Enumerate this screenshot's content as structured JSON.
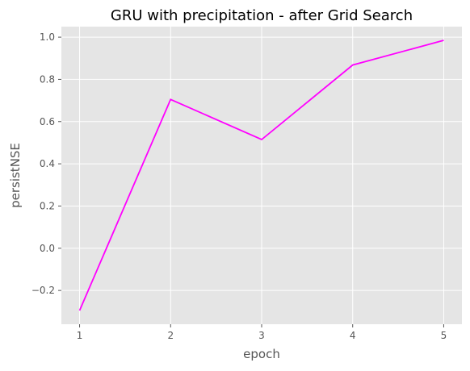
{
  "chart_data": {
    "type": "line",
    "title": "GRU with precipitation - after Grid Search",
    "xlabel": "epoch",
    "ylabel": "persistNSE",
    "x": [
      1,
      2,
      3,
      4,
      5
    ],
    "series": [
      {
        "values": [
          -0.295,
          0.705,
          0.515,
          0.868,
          0.985
        ],
        "color": "#ff00ff"
      }
    ],
    "xlim": [
      0.8,
      5.2
    ],
    "ylim": [
      -0.36,
      1.05
    ],
    "xticks": [
      1,
      2,
      3,
      4,
      5
    ],
    "xtick_labels": [
      "1",
      "2",
      "3",
      "4",
      "5"
    ],
    "yticks": [
      -0.2,
      0.0,
      0.2,
      0.4,
      0.6,
      0.8,
      1.0
    ],
    "ytick_labels": [
      "−0.2",
      "0.0",
      "0.2",
      "0.4",
      "0.6",
      "0.8",
      "1.0"
    ],
    "grid": true,
    "background_color": "#e5e5e5",
    "grid_color": "#ffffff"
  }
}
